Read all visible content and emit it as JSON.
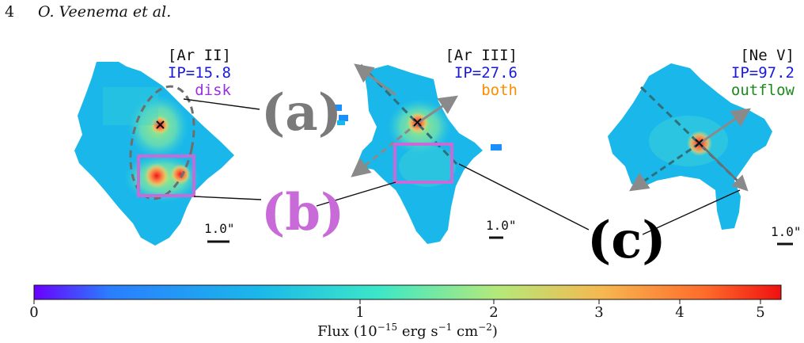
{
  "header": {
    "page_number": "4",
    "running_head": "O. Veenema et al."
  },
  "panels": [
    {
      "line": "[Ar II]",
      "ip": "IP=15.8",
      "component": "disk",
      "component_color": "#9b30e0",
      "scale_label": "1.0\""
    },
    {
      "line": "[Ar III]",
      "ip": "IP=27.6",
      "component": "both",
      "component_color": "#ff8c00",
      "scale_label": "1.0\""
    },
    {
      "line": "[Ne V]",
      "ip": "IP=97.2",
      "component": "outflow",
      "component_color": "#1a8a1a",
      "scale_label": "1.0\""
    }
  ],
  "labels": {
    "a": "(a)",
    "b": "(b)",
    "c": "(c)",
    "a_color": "#7a7a7a",
    "b_color": "#c86ad8",
    "c_color": "#000000"
  },
  "colorbar": {
    "ticks": [
      "0",
      "1",
      "2",
      "3",
      "4",
      "5"
    ],
    "title_prefix": "Flux (10",
    "title_exp1": "−15",
    "title_mid": " erg s",
    "title_exp2": "−1",
    "title_mid2": " cm",
    "title_exp3": "−2",
    "title_suffix": ")"
  },
  "colors": {
    "ip_color": "#1a1adc",
    "box_color": "#c86ad8",
    "arrow_color": "#8a8a8a",
    "dashed_dark": "#2f6f7a"
  }
}
